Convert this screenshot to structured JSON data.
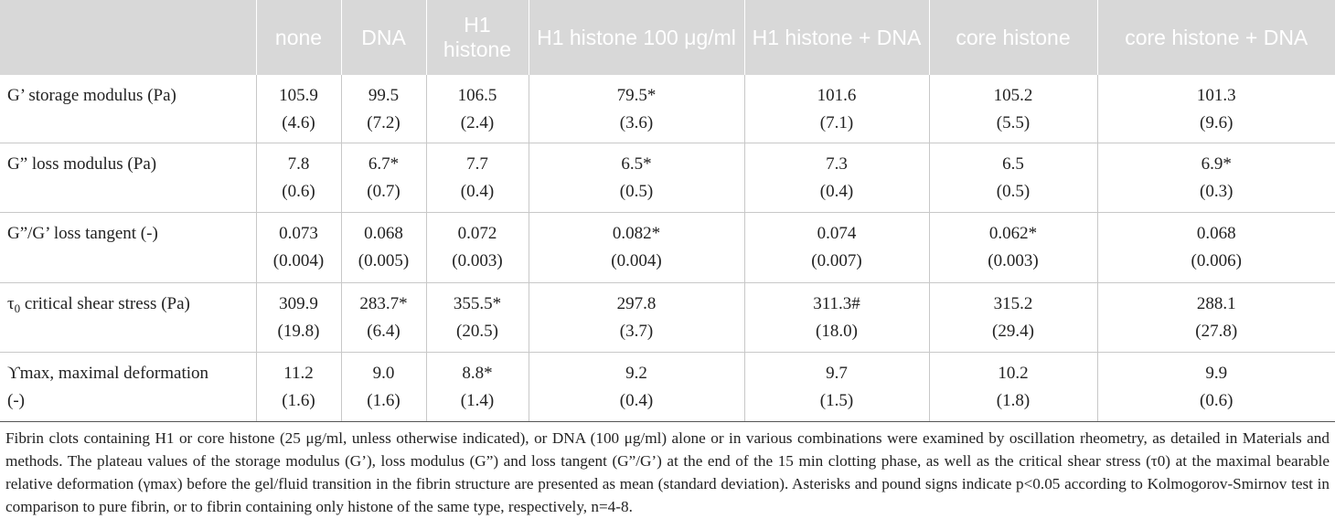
{
  "columns": [
    "",
    "none",
    "DNA",
    "H1 histone",
    "H1 histone 100 μg/ml",
    "H1 histone + DNA",
    "core histone",
    "core histone + DNA"
  ],
  "rows": [
    {
      "label": "G’ storage modulus (Pa)",
      "cells": [
        [
          "105.9",
          "(4.6)"
        ],
        [
          "99.5",
          "(7.2)"
        ],
        [
          "106.5",
          "(2.4)"
        ],
        [
          "79.5*",
          "(3.6)"
        ],
        [
          "101.6",
          "(7.1)"
        ],
        [
          "105.2",
          "(5.5)"
        ],
        [
          "101.3",
          "(9.6)"
        ]
      ]
    },
    {
      "label": "G” loss modulus (Pa)",
      "cells": [
        [
          "7.8",
          "(0.6)"
        ],
        [
          "6.7*",
          "(0.7)"
        ],
        [
          "7.7",
          "(0.4)"
        ],
        [
          "6.5*",
          "(0.5)"
        ],
        [
          "7.3",
          "(0.4)"
        ],
        [
          "6.5",
          "(0.5)"
        ],
        [
          "6.9*",
          "(0.3)"
        ]
      ]
    },
    {
      "label": "G”/G’ loss tangent (-)",
      "cells": [
        [
          "0.073",
          "(0.004)"
        ],
        [
          "0.068",
          "(0.005)"
        ],
        [
          "0.072",
          "(0.003)"
        ],
        [
          "0.082*",
          "(0.004)"
        ],
        [
          "0.074",
          "(0.007)"
        ],
        [
          "0.062*",
          "(0.003)"
        ],
        [
          "0.068",
          "(0.006)"
        ]
      ]
    },
    {
      "label_prefix": "τ",
      "label_sub": "0",
      "label_suffix": " critical shear stress (Pa)",
      "cells": [
        [
          "309.9",
          "(19.8)"
        ],
        [
          "283.7*",
          "(6.4)"
        ],
        [
          "355.5*",
          "(20.5)"
        ],
        [
          "297.8",
          "(3.7)"
        ],
        [
          "311.3#",
          "(18.0)"
        ],
        [
          "315.2",
          "(29.4)"
        ],
        [
          "288.1",
          "(27.8)"
        ]
      ]
    },
    {
      "label_line1": "ϒmax, maximal deformation",
      "label_line2": "(-)",
      "cells": [
        [
          "11.2",
          "(1.6)"
        ],
        [
          "9.0",
          "(1.6)"
        ],
        [
          "8.8*",
          "(1.4)"
        ],
        [
          "9.2",
          "(0.4)"
        ],
        [
          "9.7",
          "(1.5)"
        ],
        [
          "10.2",
          "(1.8)"
        ],
        [
          "9.9",
          "(0.6)"
        ]
      ]
    }
  ],
  "footnote": "Fibrin clots containing H1 or core histone (25 μg/ml, unless otherwise indicated), or DNA (100 μg/ml) alone or in various combinations were examined by oscillation rheometry, as detailed in Materials and methods. The plateau values of the storage modulus (G’), loss modulus (G”) and loss tangent (G”/G’) at the end of the 15 min clotting phase, as well as the critical shear stress (τ0) at the maximal bearable relative deformation (γmax) before the gel/fluid transition in the fibrin structure are presented as mean (standard deviation). Asterisks and pound signs indicate p<0.05 according to Kolmogorov-Smirnov test in comparison to pure fibrin, or to fibrin containing only histone of the same type, respectively, n=4-8."
}
